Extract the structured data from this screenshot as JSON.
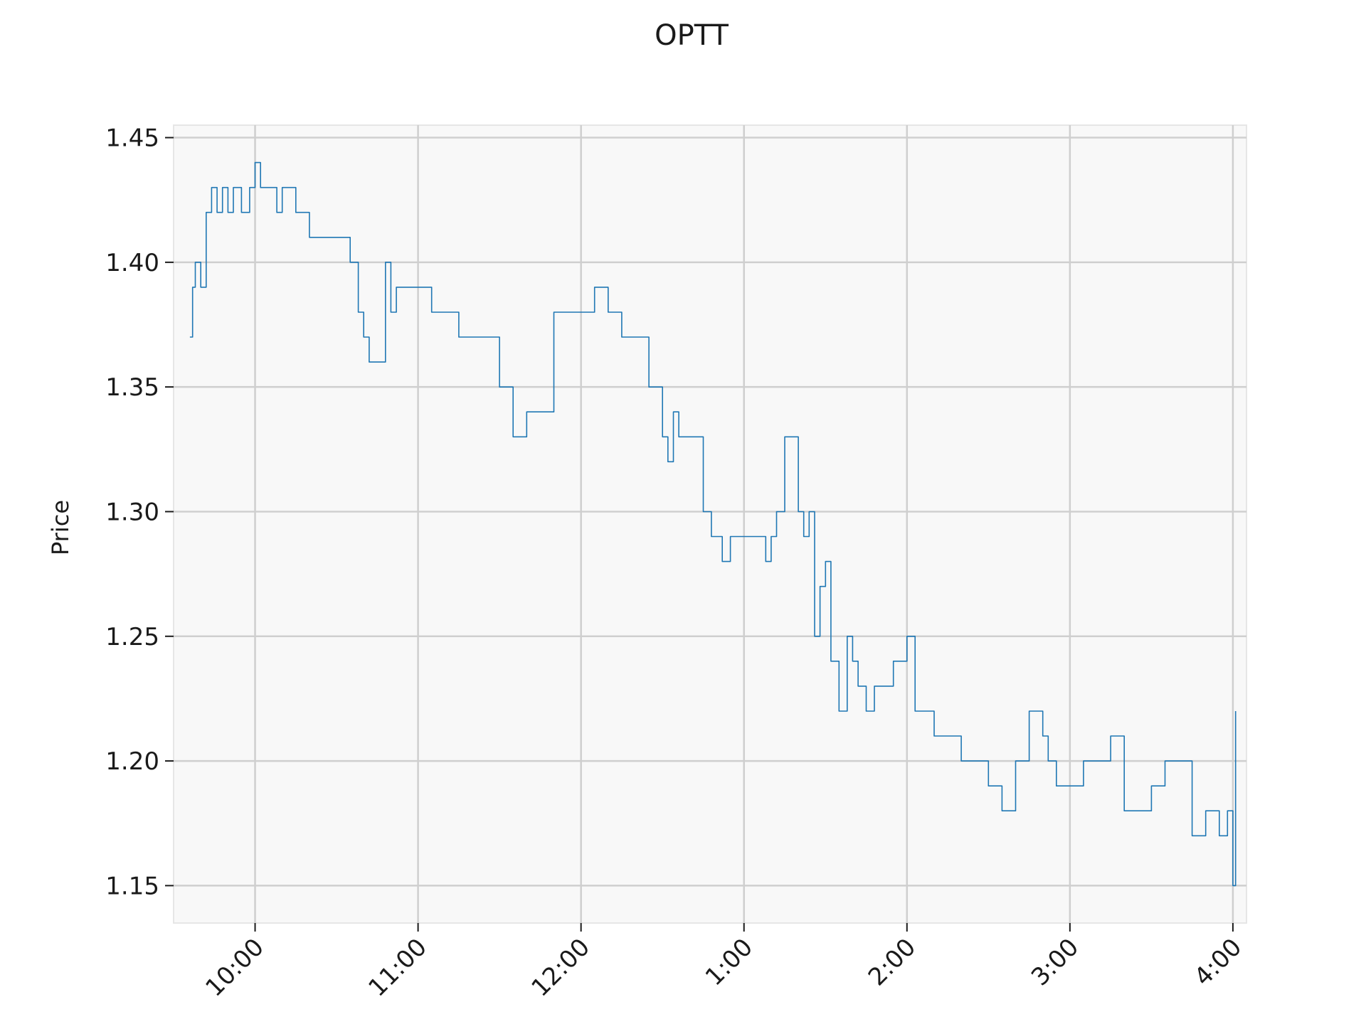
{
  "chart_data": {
    "type": "line",
    "title": "OPTT",
    "xlabel": "",
    "ylabel": "Price",
    "grid": true,
    "legend": "none",
    "xlim": [
      "9:30",
      "4:05"
    ],
    "ylim": [
      1.135,
      1.455
    ],
    "y_ticks": [
      {
        "value": 1.45,
        "label": "1.45"
      },
      {
        "value": 1.4,
        "label": "1.40"
      },
      {
        "value": 1.35,
        "label": "1.35"
      },
      {
        "value": 1.3,
        "label": "1.30"
      },
      {
        "value": 1.25,
        "label": "1.25"
      },
      {
        "value": 1.2,
        "label": "1.20"
      },
      {
        "value": 1.15,
        "label": "1.15"
      }
    ],
    "x_ticks": [
      {
        "value": "10:00",
        "label": "10:00"
      },
      {
        "value": "11:00",
        "label": "11:00"
      },
      {
        "value": "12:00",
        "label": "12:00"
      },
      {
        "value": "1:00",
        "label": "1:00"
      },
      {
        "value": "2:00",
        "label": "2:00"
      },
      {
        "value": "3:00",
        "label": "3:00"
      },
      {
        "value": "4:00",
        "label": "4:00"
      }
    ],
    "series": [
      {
        "color": "#1f77b4",
        "x": [
          "9:36",
          "9:37",
          "9:38",
          "9:40",
          "9:42",
          "9:44",
          "9:46",
          "9:48",
          "9:50",
          "9:52",
          "9:55",
          "9:58",
          "10:00",
          "10:02",
          "10:04",
          "10:06",
          "10:08",
          "10:10",
          "10:15",
          "10:20",
          "10:25",
          "10:30",
          "10:35",
          "10:38",
          "10:40",
          "10:42",
          "10:45",
          "10:48",
          "10:50",
          "10:52",
          "10:54",
          "10:56",
          "10:58",
          "11:00",
          "11:05",
          "11:10",
          "11:15",
          "11:20",
          "11:25",
          "11:30",
          "11:35",
          "11:40",
          "11:45",
          "11:50",
          "11:55",
          "12:00",
          "12:05",
          "12:10",
          "12:15",
          "12:20",
          "12:25",
          "12:30",
          "12:32",
          "12:34",
          "12:36",
          "12:40",
          "12:45",
          "12:48",
          "12:50",
          "12:52",
          "12:55",
          "12:58",
          "1:00",
          "1:05",
          "1:08",
          "1:10",
          "1:12",
          "1:15",
          "1:20",
          "1:22",
          "1:24",
          "1:26",
          "1:28",
          "1:30",
          "1:32",
          "1:35",
          "1:38",
          "1:40",
          "1:42",
          "1:45",
          "1:48",
          "1:50",
          "1:55",
          "2:00",
          "2:03",
          "2:05",
          "2:10",
          "2:20",
          "2:30",
          "2:35",
          "2:40",
          "2:45",
          "2:50",
          "2:52",
          "2:55",
          "3:00",
          "3:05",
          "3:10",
          "3:15",
          "3:20",
          "3:25",
          "3:30",
          "3:35",
          "3:40",
          "3:45",
          "3:50",
          "3:55",
          "3:58",
          "4:00",
          "4:01"
        ],
        "y": [
          1.37,
          1.39,
          1.4,
          1.39,
          1.42,
          1.43,
          1.42,
          1.43,
          1.42,
          1.43,
          1.42,
          1.43,
          1.44,
          1.43,
          1.43,
          1.43,
          1.42,
          1.43,
          1.42,
          1.41,
          1.41,
          1.41,
          1.4,
          1.38,
          1.37,
          1.36,
          1.36,
          1.4,
          1.38,
          1.39,
          1.39,
          1.39,
          1.39,
          1.39,
          1.38,
          1.38,
          1.37,
          1.37,
          1.37,
          1.35,
          1.33,
          1.34,
          1.34,
          1.38,
          1.38,
          1.38,
          1.39,
          1.38,
          1.37,
          1.37,
          1.35,
          1.33,
          1.32,
          1.34,
          1.33,
          1.33,
          1.3,
          1.29,
          1.29,
          1.28,
          1.29,
          1.29,
          1.29,
          1.29,
          1.28,
          1.29,
          1.3,
          1.33,
          1.3,
          1.29,
          1.3,
          1.25,
          1.27,
          1.28,
          1.24,
          1.22,
          1.25,
          1.24,
          1.23,
          1.22,
          1.23,
          1.23,
          1.24,
          1.25,
          1.22,
          1.22,
          1.21,
          1.2,
          1.19,
          1.18,
          1.2,
          1.22,
          1.21,
          1.2,
          1.19,
          1.19,
          1.2,
          1.2,
          1.21,
          1.18,
          1.18,
          1.19,
          1.2,
          1.2,
          1.17,
          1.18,
          1.17,
          1.18,
          1.15,
          1.22
        ]
      }
    ]
  }
}
